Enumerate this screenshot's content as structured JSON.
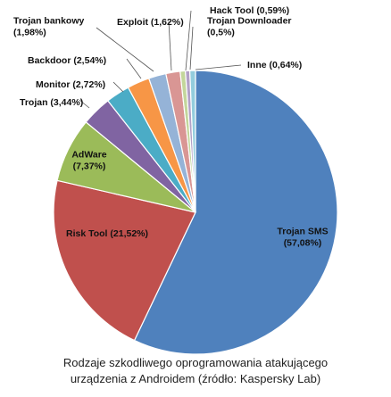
{
  "chart_data": {
    "type": "pie",
    "categories": [
      "Trojan SMS",
      "Risk Tool",
      "AdWare",
      "Trojan",
      "Monitor",
      "Backdoor",
      "Trojan bankowy",
      "Exploit",
      "Hack Tool",
      "Trojan Downloader",
      "Inne"
    ],
    "values": [
      57.08,
      21.52,
      7.37,
      3.44,
      2.72,
      2.54,
      1.98,
      1.62,
      0.59,
      0.5,
      0.64
    ],
    "labels": [
      [
        "Trojan SMS",
        "(57,08%)"
      ],
      [
        "Risk Tool (21,52%)"
      ],
      [
        "AdWare",
        "(7,37%)"
      ],
      [
        "Trojan (3,44%)"
      ],
      [
        "Monitor (2,72%)"
      ],
      [
        "Backdoor (2,54%)"
      ],
      [
        "Trojan bankowy",
        "(1,98%)"
      ],
      [
        "Exploit (1,62%)"
      ],
      [
        "Hack Tool (0,59%)"
      ],
      [
        "Trojan Downloader",
        "(0,5%)"
      ],
      [
        "Inne (0,64%)"
      ]
    ],
    "colors": [
      "#4f81bd",
      "#c0504d",
      "#9bbb59",
      "#8064a2",
      "#4bacc6",
      "#f79646",
      "#95b3d7",
      "#d99694",
      "#c3d69b",
      "#b2a1c7",
      "#93cddd"
    ],
    "title": "",
    "legend": "none"
  },
  "caption": {
    "line1": "Rodzaje szkodliwego oprogramowania atakującego",
    "line2": "urządzenia z Androidem (źródło: Kaspersky Lab)"
  }
}
